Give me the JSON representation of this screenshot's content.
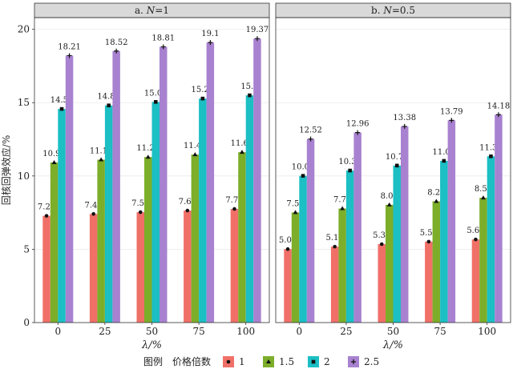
{
  "chart_data": [
    {
      "type": "bar",
      "panel_label": "a. N=1",
      "xlabel": "λ/%",
      "ylabel": "回核回弹效应/%",
      "ylim": [
        0,
        20
      ],
      "yticks": [
        0,
        5,
        10,
        15,
        20
      ],
      "categories": [
        "0",
        "25",
        "50",
        "75",
        "100"
      ],
      "grid": true,
      "series": [
        {
          "name": "1",
          "values": [
            7.28,
            7.41,
            7.53,
            7.64,
            7.75
          ],
          "labels": [
            "7.28",
            "7.41",
            "7.53",
            "7.64",
            "7.75"
          ],
          "color": "#F07068",
          "marker": "circle"
        },
        {
          "name": "1.5",
          "values": [
            10.92,
            11.11,
            11.29,
            11.46,
            11.62
          ],
          "labels": [
            "10.92",
            "11.11",
            "11.29",
            "11.46",
            "11.62"
          ],
          "color": "#7CAE2A",
          "marker": "triangle"
        },
        {
          "name": "2",
          "values": [
            14.57,
            14.81,
            15.05,
            15.28,
            15.5
          ],
          "labels": [
            "14.57",
            "14.81",
            "15.05",
            "15.28",
            "15.5"
          ],
          "color": "#1BBFC4",
          "marker": "square"
        },
        {
          "name": "2.5",
          "values": [
            18.21,
            18.52,
            18.81,
            19.1,
            19.37
          ],
          "labels": [
            "18.21",
            "18.52",
            "18.81",
            "19.1",
            "19.37"
          ],
          "color": "#A882D0",
          "marker": "plus"
        }
      ]
    },
    {
      "type": "bar",
      "panel_label": "b. N=0.5",
      "xlabel": "λ/%",
      "ylabel": "回核回弹效应/%",
      "ylim": [
        0,
        20
      ],
      "yticks": [
        0,
        5,
        10,
        15,
        20
      ],
      "categories": [
        "0",
        "25",
        "50",
        "75",
        "100"
      ],
      "grid": true,
      "series": [
        {
          "name": "1",
          "values": [
            5.01,
            5.18,
            5.35,
            5.52,
            5.67
          ],
          "labels": [
            "5.01",
            "5.18",
            "5.35",
            "5.52",
            "5.67"
          ],
          "color": "#F07068",
          "marker": "circle"
        },
        {
          "name": "1.5",
          "values": [
            7.51,
            7.78,
            8.03,
            8.27,
            8.51
          ],
          "labels": [
            "7.51",
            "7.78",
            "8.03",
            "8.27",
            "8.51"
          ],
          "color": "#7CAE2A",
          "marker": "triangle"
        },
        {
          "name": "2",
          "values": [
            10.01,
            10.37,
            10.71,
            11.03,
            11.34
          ],
          "labels": [
            "10.01",
            "10.37",
            "10.71",
            "11.03",
            "11.34"
          ],
          "color": "#1BBFC4",
          "marker": "square"
        },
        {
          "name": "2.5",
          "values": [
            12.52,
            12.96,
            13.38,
            13.79,
            14.18
          ],
          "labels": [
            "12.52",
            "12.96",
            "13.38",
            "13.79",
            "14.18"
          ],
          "color": "#A882D0",
          "marker": "plus"
        }
      ]
    }
  ],
  "legend": {
    "prefix": "图例",
    "title": "价格倍数",
    "placement": "bottom",
    "items": [
      "1",
      "1.5",
      "2",
      "2.5"
    ]
  },
  "colors": {
    "panel_background": "#FFFFFF",
    "strip_background": "#D9D9D9",
    "grid": "#EBEBEB",
    "border": "#333333"
  }
}
